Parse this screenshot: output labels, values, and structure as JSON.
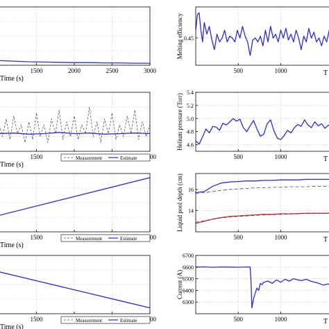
{
  "chart_data": [
    {
      "type": "line",
      "xlabel": "Time (s)",
      "ylabel": "",
      "xlim": [
        1000,
        3000
      ],
      "ylim": [
        0,
        1
      ],
      "xticks": [
        1500,
        2000,
        2500,
        3000
      ],
      "yticks": [],
      "grid": true,
      "legend": "",
      "series": [
        {
          "color": "#2b2bd6",
          "x": [
            1000,
            1200,
            1400,
            1600,
            1800,
            2000,
            2200,
            2400,
            2600,
            2800,
            3000
          ],
          "y": [
            0.08,
            0.07,
            0.06,
            0.055,
            0.05,
            0.045,
            0.045,
            0.04,
            0.04,
            0.035,
            0.035
          ]
        }
      ]
    },
    {
      "type": "line",
      "xlabel": "Time (s)",
      "ylabel": "",
      "xlim": [
        1000,
        3000
      ],
      "ylim": [
        0,
        1
      ],
      "xticks": [
        1500,
        2000,
        2500,
        3000
      ],
      "yticks": [],
      "grid": true,
      "legend": "bottom-right",
      "legend_entries": [
        "Measurement",
        "Estimate"
      ],
      "series": [
        {
          "name": "Measurement",
          "color": "#555555",
          "dash": "3,2",
          "x": [
            1000,
            1050,
            1100,
            1150,
            1200,
            1250,
            1300,
            1350,
            1400,
            1450,
            1500,
            1550,
            1600,
            1650,
            1700,
            1750,
            1800,
            1850,
            1900,
            1950,
            2000,
            2050,
            2100,
            2150,
            2200,
            2250,
            2300,
            2350,
            2400,
            2450,
            2500,
            2550,
            2600,
            2650,
            2700,
            2750,
            2800,
            2850,
            2900,
            2950,
            3000
          ],
          "y": [
            0.5,
            0.25,
            0.55,
            0.2,
            0.6,
            0.3,
            0.45,
            0.15,
            0.5,
            0.2,
            0.65,
            0.25,
            0.45,
            0.15,
            0.55,
            0.3,
            0.7,
            0.2,
            0.5,
            0.25,
            0.6,
            0.2,
            0.45,
            0.3,
            0.75,
            0.25,
            0.5,
            0.15,
            0.55,
            0.3,
            0.65,
            0.2,
            0.45,
            0.25,
            0.6,
            0.3,
            0.7,
            0.2,
            0.5,
            0.25,
            0.45
          ]
        },
        {
          "name": "Estimate",
          "color": "#2b2bd6",
          "x": [
            1000,
            1200,
            1400,
            1600,
            1800,
            2000,
            2200,
            2400,
            2600,
            2800,
            3000
          ],
          "y": [
            0.3,
            0.31,
            0.29,
            0.3,
            0.32,
            0.3,
            0.31,
            0.29,
            0.3,
            0.31,
            0.3
          ]
        }
      ]
    },
    {
      "type": "line",
      "xlabel": "Time (s)",
      "ylabel": "",
      "xlim": [
        1000,
        3000
      ],
      "ylim": [
        0,
        1
      ],
      "xticks": [
        1500,
        2000,
        2500,
        3000
      ],
      "yticks": [],
      "grid": true,
      "legend": "bottom-right",
      "legend_entries": [
        "Measurement",
        "Estimate"
      ],
      "series": [
        {
          "name": "Estimate",
          "color": "#2b2bd6",
          "x": [
            1000,
            3000
          ],
          "y": [
            0.28,
            0.93
          ]
        }
      ]
    },
    {
      "type": "line",
      "xlabel": "Time (s)",
      "ylabel": "",
      "xlim": [
        1000,
        3000
      ],
      "ylim": [
        0,
        1
      ],
      "xticks": [
        1500,
        2000,
        2500,
        3000
      ],
      "yticks": [],
      "grid": true,
      "legend": "bottom-right",
      "legend_entries": [
        "Measurement",
        "Estimate"
      ],
      "series": [
        {
          "name": "Estimate",
          "color": "#2b2bd6",
          "x": [
            1000,
            3000
          ],
          "y": [
            0.72,
            0.1
          ]
        }
      ]
    },
    {
      "type": "line",
      "xlabel": "",
      "ylabel": "Melting efficiency",
      "xlim": [
        0,
        1600
      ],
      "ylim": [
        0.38,
        0.53
      ],
      "xticks": [
        500,
        1000
      ],
      "yticks": [
        0.45
      ],
      "ytick_labels": [
        "0.45"
      ],
      "grid": true,
      "legend": "",
      "series": [
        {
          "color": "#2b2bd6",
          "x": [
            0,
            20,
            40,
            60,
            80,
            100,
            130,
            160,
            190,
            220,
            250,
            280,
            310,
            340,
            370,
            400,
            430,
            460,
            490,
            520,
            550,
            580,
            610,
            640,
            670,
            700,
            730,
            760,
            790,
            820,
            850,
            880,
            910,
            940,
            970,
            1000,
            1030,
            1060,
            1090,
            1120,
            1150,
            1180,
            1210,
            1240,
            1270,
            1300,
            1330,
            1360,
            1390,
            1420,
            1450,
            1480,
            1510,
            1540,
            1570,
            1600
          ],
          "y": [
            0.47,
            0.51,
            0.515,
            0.47,
            0.44,
            0.49,
            0.46,
            0.48,
            0.445,
            0.42,
            0.46,
            0.44,
            0.45,
            0.47,
            0.44,
            0.455,
            0.45,
            0.44,
            0.47,
            0.45,
            0.48,
            0.455,
            0.44,
            0.405,
            0.445,
            0.45,
            0.44,
            0.455,
            0.43,
            0.47,
            0.44,
            0.48,
            0.45,
            0.46,
            0.44,
            0.47,
            0.45,
            0.475,
            0.445,
            0.46,
            0.44,
            0.47,
            0.45,
            0.42,
            0.455,
            0.44,
            0.475,
            0.45,
            0.465,
            0.44,
            0.45,
            0.43,
            0.455,
            0.44,
            0.47,
            0.45
          ]
        }
      ]
    },
    {
      "type": "line",
      "xlabel": "",
      "ylabel": "Helium pressure (Torr)",
      "xlim": [
        0,
        1600
      ],
      "ylim": [
        4.5,
        5.4
      ],
      "xticks": [
        500,
        1000
      ],
      "yticks": [
        4.6,
        4.8,
        5.0,
        5.2,
        5.4
      ],
      "ytick_labels": [
        "4.6",
        "4.8",
        "5.0",
        "5.2",
        "5.4"
      ],
      "grid": true,
      "legend": "",
      "series": [
        {
          "color": "#2b2bd6",
          "x": [
            0,
            40,
            80,
            120,
            160,
            200,
            240,
            280,
            320,
            360,
            400,
            440,
            480,
            520,
            560,
            600,
            640,
            680,
            720,
            760,
            800,
            840,
            880,
            920,
            960,
            1000,
            1040,
            1080,
            1120,
            1160,
            1200,
            1240,
            1280,
            1320,
            1360,
            1400,
            1440,
            1480,
            1520,
            1560,
            1600
          ],
          "y": [
            4.66,
            4.61,
            4.72,
            4.84,
            4.78,
            4.88,
            4.87,
            4.82,
            4.93,
            4.9,
            4.95,
            5.0,
            4.96,
            4.99,
            4.86,
            4.8,
            4.89,
            4.97,
            4.84,
            4.73,
            4.76,
            4.92,
            4.98,
            4.81,
            4.7,
            4.68,
            4.74,
            4.82,
            4.78,
            4.86,
            4.91,
            4.88,
            4.98,
            4.9,
            4.86,
            4.95,
            4.89,
            4.92,
            4.85,
            4.9,
            4.88
          ]
        }
      ]
    },
    {
      "type": "line",
      "xlabel": "",
      "ylabel": "Liquid pool depth (cm)",
      "xlim": [
        0,
        1600
      ],
      "ylim": [
        12,
        17.5
      ],
      "xticks": [
        500,
        1000
      ],
      "yticks": [
        14,
        16
      ],
      "ytick_labels": [
        "14",
        "16"
      ],
      "grid": true,
      "legend": "",
      "series": [
        {
          "color": "#2b2bd6",
          "x": [
            0,
            100,
            200,
            300,
            400,
            500,
            600,
            700,
            800,
            900,
            1000,
            1100,
            1200,
            1300,
            1400,
            1500,
            1600
          ],
          "y": [
            15.7,
            15.8,
            16.3,
            16.6,
            16.7,
            16.75,
            16.8,
            16.8,
            16.85,
            16.85,
            16.9,
            16.9,
            16.9,
            16.95,
            16.95,
            16.95,
            16.95
          ]
        },
        {
          "color": "#444444",
          "dash": "5,3",
          "x": [
            0,
            100,
            200,
            300,
            400,
            500,
            600,
            700,
            800,
            900,
            1000,
            1100,
            1200,
            1300,
            1400,
            1500,
            1600
          ],
          "y": [
            15.6,
            15.7,
            15.8,
            15.9,
            16.0,
            16.05,
            16.1,
            16.15,
            16.15,
            16.2,
            16.2,
            16.25,
            16.25,
            16.25,
            16.3,
            16.3,
            16.3
          ]
        },
        {
          "color": "#d62b2b",
          "x": [
            0,
            100,
            200,
            300,
            400,
            500,
            600,
            700,
            800,
            900,
            1000,
            1100,
            1200,
            1300,
            1400,
            1500,
            1600
          ],
          "y": [
            12.8,
            13.0,
            13.2,
            13.35,
            13.45,
            13.5,
            13.55,
            13.6,
            13.65,
            13.65,
            13.7,
            13.7,
            13.72,
            13.75,
            13.75,
            13.75,
            13.78
          ]
        },
        {
          "color": "#444444",
          "dash": "5,3",
          "x": [
            0,
            100,
            200,
            300,
            400,
            500,
            600,
            700,
            800,
            900,
            1000,
            1100,
            1200,
            1300,
            1400,
            1500,
            1600
          ],
          "y": [
            12.9,
            13.05,
            13.2,
            13.3,
            13.4,
            13.45,
            13.5,
            13.55,
            13.6,
            13.62,
            13.65,
            13.68,
            13.7,
            13.72,
            13.72,
            13.75,
            13.75
          ]
        }
      ]
    },
    {
      "type": "line",
      "xlabel": "",
      "ylabel": "Current (A)",
      "xlim": [
        0,
        1600
      ],
      "ylim": [
        6200,
        6700
      ],
      "xticks": [
        500,
        1000
      ],
      "yticks": [
        6300,
        6400,
        6500,
        6600,
        6700
      ],
      "ytick_labels": [
        "6300",
        "6400",
        "6500",
        "6600",
        "6700"
      ],
      "grid": true,
      "legend": "",
      "series": [
        {
          "color": "#2b2bd6",
          "x": [
            0,
            100,
            200,
            300,
            400,
            500,
            600,
            640,
            650,
            660,
            680,
            700,
            720,
            740,
            760,
            780,
            800,
            850,
            900,
            950,
            1000,
            1050,
            1100,
            1150,
            1200,
            1250,
            1300,
            1350,
            1400,
            1450,
            1500,
            1550,
            1600
          ],
          "y": [
            6600,
            6602,
            6598,
            6601,
            6600,
            6599,
            6601,
            6600,
            6480,
            6250,
            6330,
            6380,
            6420,
            6400,
            6460,
            6450,
            6470,
            6480,
            6460,
            6490,
            6470,
            6495,
            6480,
            6500,
            6490,
            6485,
            6495,
            6480,
            6470,
            6460,
            6445,
            6455,
            6450
          ]
        }
      ]
    }
  ],
  "legend_labels": {
    "measurement": "Measurement",
    "estimate": "Estimate"
  },
  "x_tick_labels_right": [
    "500",
    "1000"
  ],
  "x_tick_labels_left": [
    "1500",
    "2000",
    "2500",
    "3000"
  ],
  "clipped_xlabel_right": "T"
}
